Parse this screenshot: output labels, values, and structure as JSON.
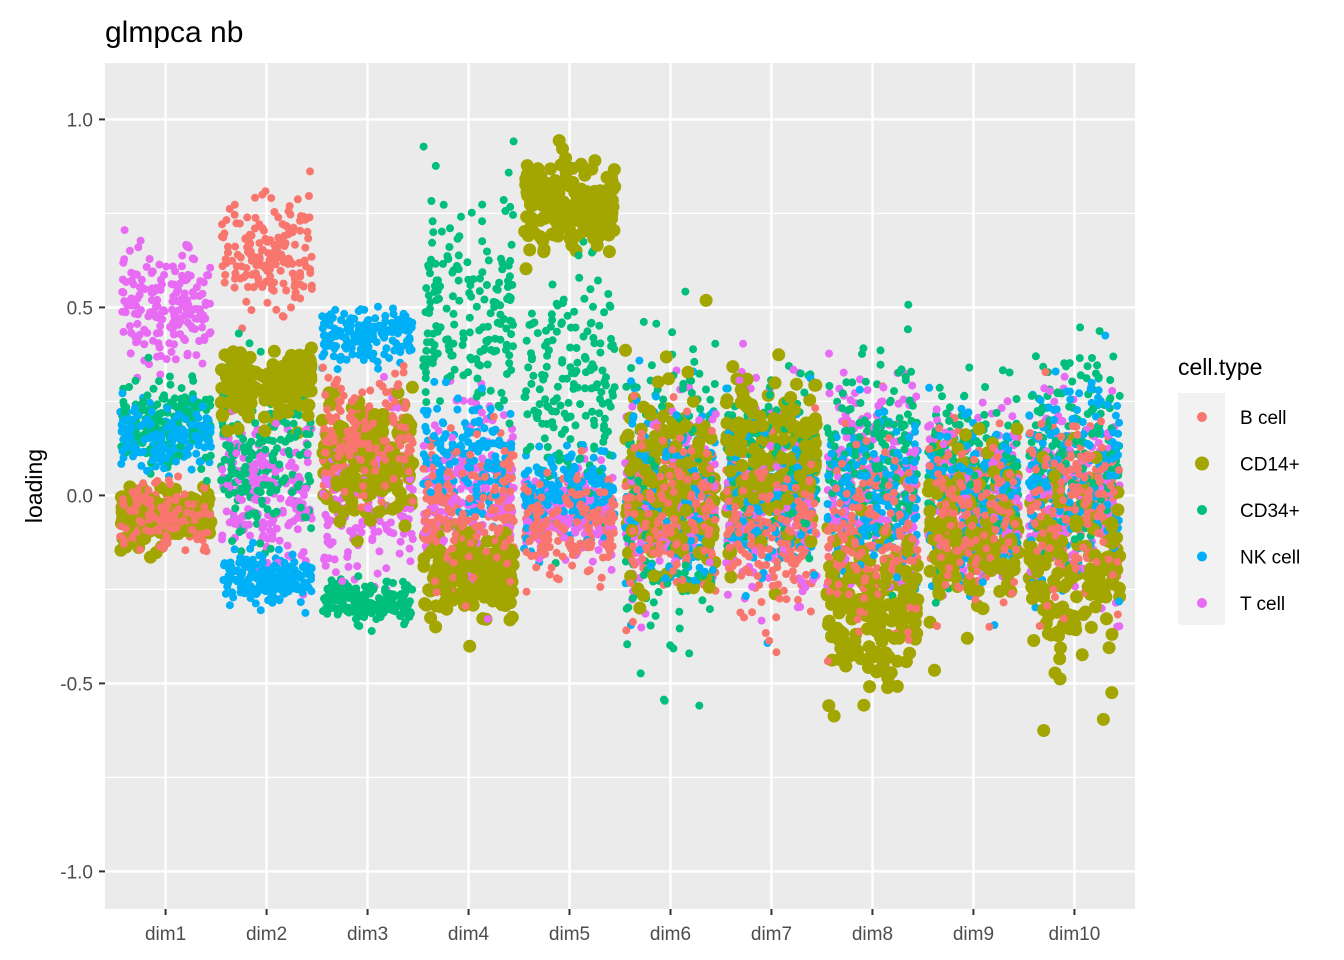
{
  "chart_data": {
    "type": "scatter",
    "title": "glmpca nb",
    "xlabel": "",
    "ylabel": "loading",
    "categories": [
      "dim1",
      "dim2",
      "dim3",
      "dim4",
      "dim5",
      "dim6",
      "dim7",
      "dim8",
      "dim9",
      "dim10"
    ],
    "y_ticks": [
      "-1.0",
      "-0.5",
      "0.0",
      "0.5",
      "1.0"
    ],
    "y_tick_values": [
      -1.0,
      -0.5,
      0.0,
      0.5,
      1.0
    ],
    "ylim": [
      -1.1,
      1.15
    ],
    "grid": true,
    "jitter": true,
    "legend": {
      "title": "cell.type",
      "placement": "right",
      "entries": [
        {
          "name": "B cell",
          "color": "#F8766D"
        },
        {
          "name": "CD14+",
          "color": "#A3A500"
        },
        {
          "name": "CD34+",
          "color": "#00BF7D"
        },
        {
          "name": "NK cell",
          "color": "#00B0F6"
        },
        {
          "name": "T cell",
          "color": "#E76BF3"
        }
      ]
    },
    "series": [
      {
        "name": "B cell",
        "color": "#F8766D",
        "centers": [
          -0.05,
          0.65,
          0.15,
          -0.05,
          -0.08,
          -0.05,
          -0.1,
          -0.1,
          -0.05,
          0.0
        ],
        "spread": [
          0.07,
          0.14,
          0.15,
          0.18,
          0.12,
          0.2,
          0.2,
          0.22,
          0.2,
          0.22
        ]
      },
      {
        "name": "CD14+",
        "color": "#A3A500",
        "centers": [
          -0.05,
          0.3,
          0.1,
          -0.2,
          0.77,
          0.0,
          0.1,
          -0.3,
          -0.1,
          -0.2
        ],
        "spread": [
          0.06,
          0.08,
          0.15,
          0.1,
          0.1,
          0.25,
          0.2,
          0.2,
          0.2,
          0.25
        ]
      },
      {
        "name": "CD34+",
        "color": "#00BF7D",
        "centers": [
          0.2,
          0.1,
          -0.28,
          0.5,
          0.3,
          0.0,
          0.1,
          0.1,
          0.05,
          0.1
        ],
        "spread": [
          0.1,
          0.2,
          0.05,
          0.25,
          0.3,
          0.4,
          0.2,
          0.25,
          0.2,
          0.25
        ]
      },
      {
        "name": "NK cell",
        "color": "#00B0F6",
        "centers": [
          0.15,
          -0.22,
          0.43,
          0.1,
          0.0,
          0.0,
          0.0,
          0.0,
          0.0,
          0.05
        ],
        "spread": [
          0.08,
          0.06,
          0.07,
          0.15,
          0.1,
          0.25,
          0.2,
          0.2,
          0.2,
          0.25
        ]
      },
      {
        "name": "T cell",
        "color": "#E76BF3",
        "centers": [
          0.5,
          0.0,
          0.0,
          0.0,
          -0.05,
          0.0,
          0.0,
          0.05,
          0.0,
          0.0
        ],
        "spread": [
          0.15,
          0.2,
          0.2,
          0.2,
          0.1,
          0.25,
          0.25,
          0.25,
          0.2,
          0.22
        ]
      }
    ]
  }
}
